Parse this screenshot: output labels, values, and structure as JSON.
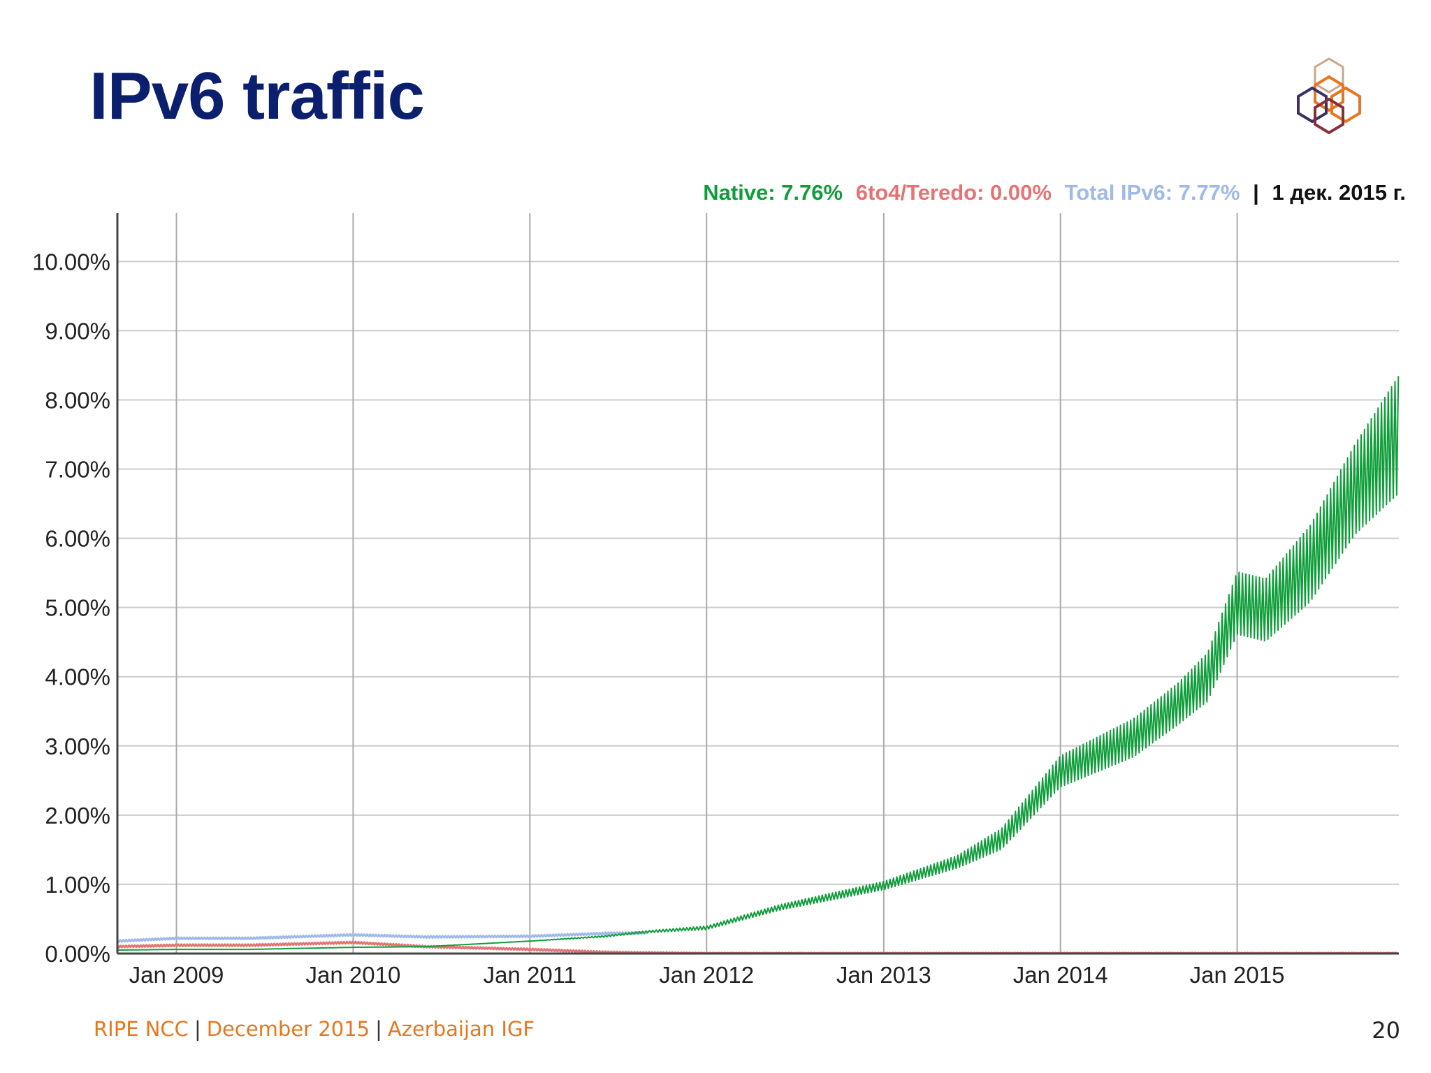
{
  "slide": {
    "title": "IPv6 traffic",
    "page_number": "20"
  },
  "footer": {
    "org": "RIPE NCC",
    "date": "December 2015",
    "event": "Azerbaijan IGF"
  },
  "logo": {
    "icon": "ripe-ncc-hexagon-cube-logo"
  },
  "chart_data": {
    "type": "line",
    "title": "",
    "xlabel": "",
    "ylabel": "",
    "ylim": [
      0,
      10.7
    ],
    "xlim": [
      "2008-09-01",
      "2015-12-01"
    ],
    "grid": true,
    "legend_placement": "top-right",
    "y_ticks": [
      "0.00%",
      "1.00%",
      "2.00%",
      "3.00%",
      "4.00%",
      "5.00%",
      "6.00%",
      "7.00%",
      "8.00%",
      "9.00%",
      "10.00%"
    ],
    "x_ticks": [
      {
        "date": "2009-01-01",
        "label": "Jan 2009"
      },
      {
        "date": "2010-01-01",
        "label": "Jan 2010"
      },
      {
        "date": "2011-01-01",
        "label": "Jan 2011"
      },
      {
        "date": "2012-01-01",
        "label": "Jan 2012"
      },
      {
        "date": "2013-01-01",
        "label": "Jan 2013"
      },
      {
        "date": "2014-01-01",
        "label": "Jan 2014"
      },
      {
        "date": "2015-01-01",
        "label": "Jan 2015"
      }
    ],
    "legend": {
      "native_label": "Native: 7.76%",
      "tunnel_label": "6to4/Teredo: 0.00%",
      "total_label": "Total IPv6: 7.77%",
      "separator": "|",
      "date_label": "1 дек. 2015 г."
    },
    "colors": {
      "native": "#0f9d3a",
      "tunnel": "#e57373",
      "total": "#9fb9ea",
      "grid": "#cccccc",
      "axis": "#444444",
      "text": "#222222"
    },
    "series": [
      {
        "key": "total",
        "x": [
          "2008-09-01",
          "2009-01-01",
          "2009-06-01",
          "2010-01-01",
          "2010-06-01",
          "2011-01-01",
          "2011-06-01",
          "2011-09-01"
        ],
        "y": [
          0.18,
          0.22,
          0.22,
          0.27,
          0.24,
          0.25,
          0.29,
          0.3
        ]
      },
      {
        "key": "tunnel",
        "x": [
          "2008-09-01",
          "2009-01-01",
          "2009-06-01",
          "2010-01-01",
          "2010-06-01",
          "2011-01-01",
          "2011-06-01",
          "2011-09-01",
          "2012-01-01",
          "2015-12-01"
        ],
        "y": [
          0.1,
          0.12,
          0.12,
          0.16,
          0.1,
          0.06,
          0.02,
          0.01,
          0.0,
          0.0
        ]
      },
      {
        "key": "native",
        "x": [
          "2008-09-01",
          "2009-01-01",
          "2009-06-01",
          "2010-01-01",
          "2010-06-01",
          "2011-01-01",
          "2011-06-01",
          "2011-09-01",
          "2012-01-01",
          "2012-06-01",
          "2013-01-01",
          "2013-06-01",
          "2013-09-01",
          "2014-01-01",
          "2014-06-01",
          "2014-09-01",
          "2014-11-01",
          "2015-01-01",
          "2015-03-01",
          "2015-06-01",
          "2015-09-01",
          "2015-12-01"
        ],
        "y": [
          0.05,
          0.06,
          0.06,
          0.09,
          0.1,
          0.18,
          0.25,
          0.32,
          0.38,
          0.68,
          1.0,
          1.35,
          1.7,
          2.7,
          3.2,
          3.7,
          4.1,
          5.2,
          5.1,
          5.8,
          6.9,
          7.76
        ],
        "amplitude": [
          0,
          0,
          0,
          0,
          0,
          0,
          0.02,
          0.03,
          0.05,
          0.08,
          0.12,
          0.18,
          0.3,
          0.45,
          0.55,
          0.6,
          0.7,
          0.9,
          0.9,
          1.1,
          1.3,
          1.7
        ]
      }
    ]
  }
}
